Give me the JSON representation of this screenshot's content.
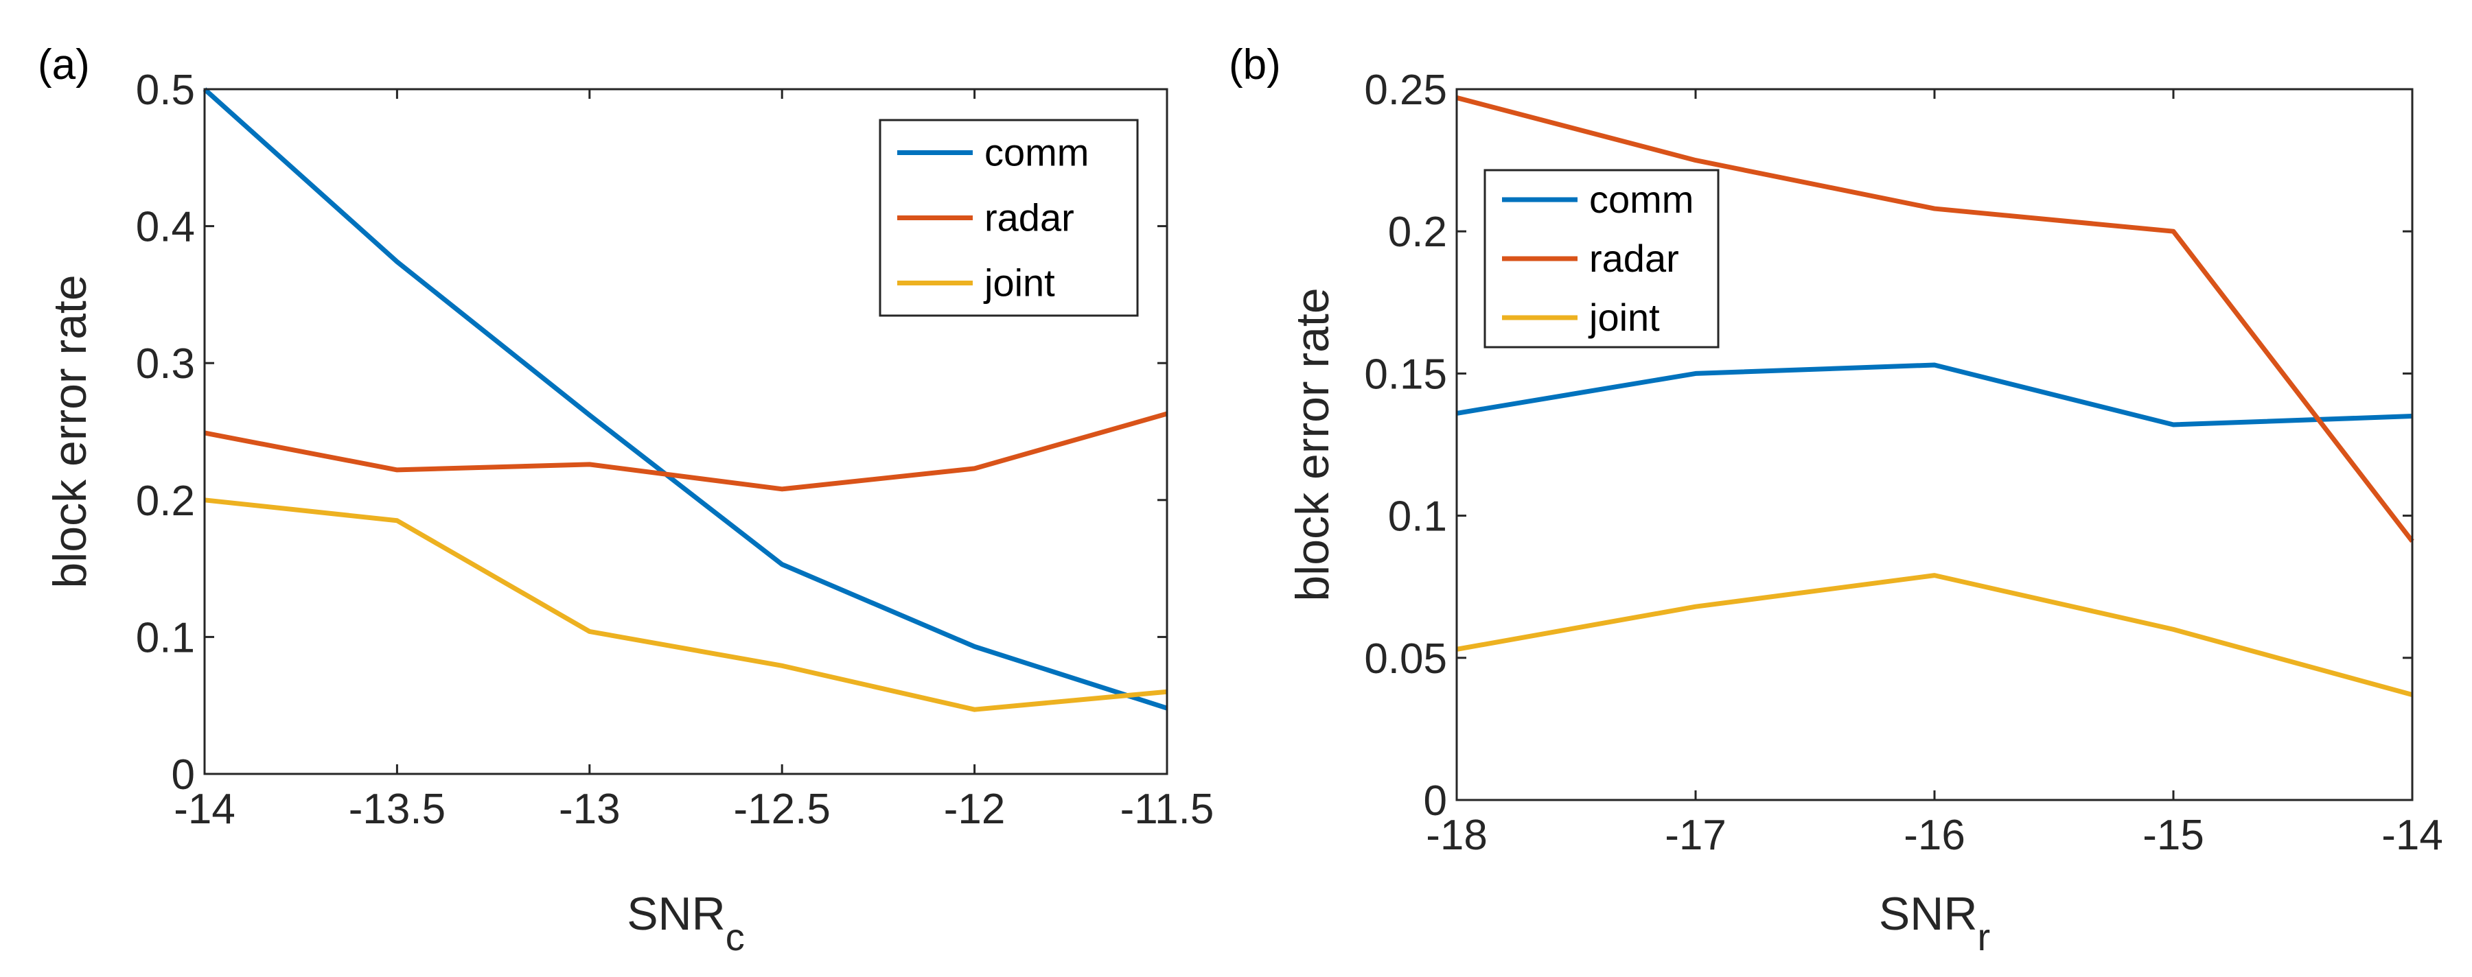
{
  "chart_data": [
    {
      "type": "line",
      "panel_label": "(a)",
      "xlabel_main": "SNR",
      "xlabel_sub": "c",
      "ylabel": "block error rate",
      "x": [
        -14,
        -13.5,
        -13,
        -12.5,
        -12,
        -11.5
      ],
      "xlim": [
        -14,
        -11.5
      ],
      "ylim": [
        0,
        0.5
      ],
      "xticks": [
        -14,
        -13.5,
        -13,
        -12.5,
        -12,
        -11.5
      ],
      "xtick_labels": [
        "-14",
        "-13.5",
        "-13",
        "-12.5",
        "-12",
        "-11.5"
      ],
      "yticks": [
        0,
        0.1,
        0.2,
        0.3,
        0.4,
        0.5
      ],
      "ytick_labels": [
        "0",
        "0.1",
        "0.2",
        "0.3",
        "0.4",
        "0.5"
      ],
      "legend_position": "top-right",
      "series": [
        {
          "name": "comm",
          "color": "#0072BD",
          "values": [
            0.5,
            0.374,
            0.262,
            0.153,
            0.093,
            0.048
          ]
        },
        {
          "name": "radar",
          "color": "#D95319",
          "values": [
            0.249,
            0.222,
            0.226,
            0.208,
            0.223,
            0.263
          ]
        },
        {
          "name": "joint",
          "color": "#EDB120",
          "values": [
            0.2,
            0.185,
            0.104,
            0.079,
            0.047,
            0.06
          ]
        }
      ]
    },
    {
      "type": "line",
      "panel_label": "(b)",
      "xlabel_main": "SNR",
      "xlabel_sub": "r",
      "ylabel": "block error rate",
      "x": [
        -18,
        -17,
        -16,
        -15,
        -14
      ],
      "xlim": [
        -18,
        -14
      ],
      "ylim": [
        0,
        0.25
      ],
      "xticks": [
        -18,
        -17,
        -16,
        -15,
        -14
      ],
      "xtick_labels": [
        "-18",
        "-17",
        "-16",
        "-15",
        "-14"
      ],
      "yticks": [
        0,
        0.05,
        0.1,
        0.15,
        0.2,
        0.25
      ],
      "ytick_labels": [
        "0",
        "0.05",
        "0.1",
        "0.15",
        "0.2",
        "0.25"
      ],
      "legend_position": "top-left",
      "series": [
        {
          "name": "comm",
          "color": "#0072BD",
          "values": [
            0.136,
            0.15,
            0.153,
            0.132,
            0.135
          ]
        },
        {
          "name": "radar",
          "color": "#D95319",
          "values": [
            0.247,
            0.225,
            0.208,
            0.2,
            0.091
          ]
        },
        {
          "name": "joint",
          "color": "#EDB120",
          "values": [
            0.053,
            0.068,
            0.079,
            0.06,
            0.037
          ]
        }
      ]
    }
  ]
}
